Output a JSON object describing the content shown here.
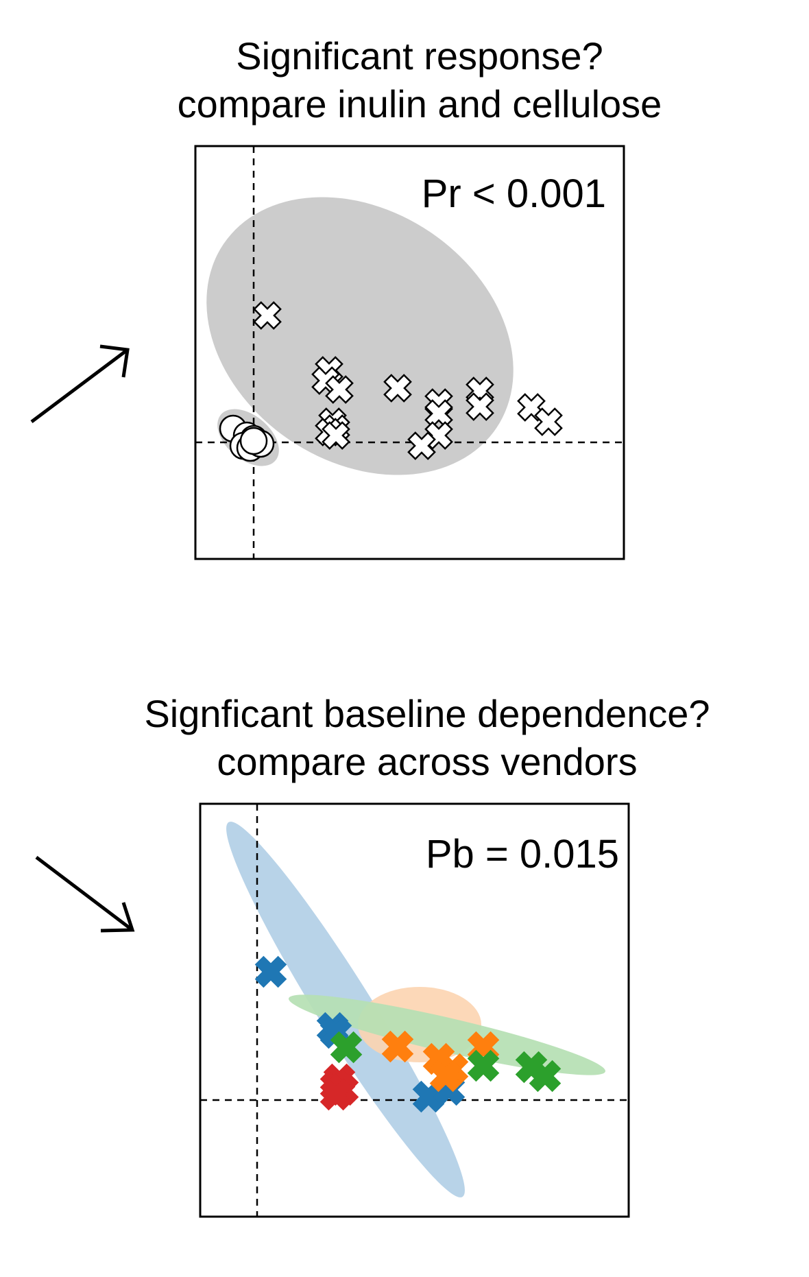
{
  "colors": {
    "ellipse_gray": "#cccccc",
    "marker_white": "#ffffff",
    "vendor_blue": "#1f77b4",
    "vendor_orange": "#ff7f0e",
    "vendor_green": "#2ca02c",
    "vendor_red": "#d62728",
    "ellipse_blue": "#b8d3e8",
    "ellipse_orange": "#fcd4b0",
    "ellipse_green": "#b5dfb3"
  },
  "chart_data": [
    {
      "type": "scatter",
      "title_lines": [
        "Significant response?",
        "compare inulin and cellulose"
      ],
      "annotation": "Pr < 0.001",
      "xlim": [
        -1,
        6.3
      ],
      "ylim": [
        -1,
        2.5
      ],
      "grid": false,
      "reference_lines": {
        "x": 0,
        "y": 0
      },
      "arrow": "up-right",
      "series": [
        {
          "marker": "x",
          "color": "#ffffff",
          "values": [
            [
              0.2,
              1.85
            ],
            [
              1.1,
              1.05
            ],
            [
              1.05,
              0.9
            ],
            [
              1.25,
              0.77
            ],
            [
              2.1,
              0.79
            ],
            [
              2.7,
              0.58
            ],
            [
              2.7,
              0.42
            ],
            [
              3.3,
              0.75
            ],
            [
              3.3,
              0.52
            ],
            [
              4.05,
              0.51
            ],
            [
              4.3,
              0.3
            ],
            [
              1.15,
              0.3
            ],
            [
              1.2,
              0.2
            ],
            [
              1.1,
              0.15
            ],
            [
              2.7,
              0.1
            ],
            [
              2.45,
              -0.05
            ],
            [
              1.2,
              0.1
            ]
          ]
        },
        {
          "marker": "o",
          "color": "#ffffff",
          "values": [
            [
              -0.3,
              0.2
            ],
            [
              -0.1,
              0.1
            ],
            [
              0,
              0.05
            ],
            [
              -0.15,
              -0.05
            ],
            [
              0.05,
              0
            ],
            [
              -0.05,
              -0.08
            ],
            [
              0.1,
              -0.02
            ],
            [
              0.0,
              0.02
            ]
          ]
        }
      ],
      "ellipses": [
        {
          "color": "#cccccc"
        },
        {
          "color": "#cccccc"
        }
      ]
    },
    {
      "type": "scatter",
      "title_lines": [
        "Signficant baseline dependence?",
        "compare across vendors"
      ],
      "annotation": "Pb = 0.015",
      "xlim": [
        -1,
        6.3
      ],
      "ylim": [
        -1,
        2.5
      ],
      "grid": false,
      "reference_lines": {
        "x": 0,
        "y": 0
      },
      "arrow": "down-right",
      "series": [
        {
          "marker": "x",
          "color": "#1f77b4",
          "values": [
            [
              0.2,
              1.87
            ],
            [
              1.1,
              1.05
            ],
            [
              1.15,
              0.98
            ],
            [
              2.5,
              0.05
            ],
            [
              2.8,
              0.15
            ]
          ]
        },
        {
          "marker": "x",
          "color": "#ff7f0e",
          "values": [
            [
              2.05,
              0.78
            ],
            [
              3.3,
              0.77
            ],
            [
              2.65,
              0.6
            ],
            [
              2.85,
              0.45
            ],
            [
              2.75,
              0.35
            ]
          ]
        },
        {
          "marker": "x",
          "color": "#2ca02c",
          "values": [
            [
              1.3,
              0.77
            ],
            [
              3.3,
              0.5
            ],
            [
              4.0,
              0.48
            ],
            [
              4.2,
              0.35
            ]
          ]
        },
        {
          "marker": "x",
          "color": "#d62728",
          "values": [
            [
              1.2,
              0.3
            ],
            [
              1.15,
              0.2
            ],
            [
              1.25,
              0.15
            ],
            [
              1.15,
              0.08
            ]
          ]
        }
      ],
      "ellipses": [
        {
          "color": "#b8d3e8"
        },
        {
          "color": "#fcd4b0"
        },
        {
          "color": "#b5dfb3"
        }
      ]
    }
  ]
}
